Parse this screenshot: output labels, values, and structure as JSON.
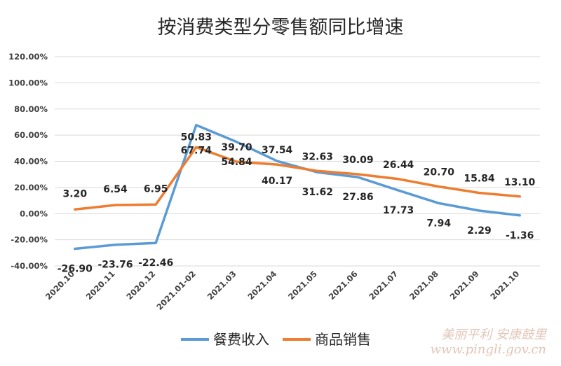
{
  "chart_data": {
    "type": "line",
    "title": "按消费类型分零售额同比增速",
    "categories": [
      "2020.10",
      "2020.11",
      "2020.12",
      "2021.01-02",
      "2021.03",
      "2021.04",
      "2021.05",
      "2021.06",
      "2021.07",
      "2021.08",
      "2021.09",
      "2021.10"
    ],
    "series": [
      {
        "name": "餐费收入",
        "color": "#5b9bd5",
        "values": [
          -26.9,
          -23.76,
          -22.46,
          67.74,
          54.84,
          40.17,
          31.62,
          27.86,
          17.73,
          7.94,
          2.29,
          -1.36
        ],
        "labels": [
          "-26.90",
          "-23.76",
          "-22.46",
          "67.74",
          "54.84",
          "40.17",
          "31.62",
          "27.86",
          "17.73",
          "7.94",
          "2.29",
          "-1.36"
        ]
      },
      {
        "name": "商品销售",
        "color": "#ed7d31",
        "values": [
          3.2,
          6.54,
          6.95,
          50.83,
          39.7,
          37.54,
          32.63,
          30.09,
          26.44,
          20.7,
          15.84,
          13.1
        ],
        "labels": [
          "3.20",
          "6.54",
          "6.95",
          "50.83",
          "39.70",
          "37.54",
          "32.63",
          "30.09",
          "26.44",
          "20.70",
          "15.84",
          "13.10"
        ]
      }
    ],
    "ylim": [
      -40,
      120
    ],
    "yticks": [
      "-40.00%",
      "-20.00%",
      "0.00%",
      "20.00%",
      "40.00%",
      "60.00%",
      "80.00%",
      "100.00%",
      "120.00%"
    ],
    "grid": true,
    "legend_position": "bottom"
  },
  "watermark": {
    "line1": "美丽平利 安康鼓里",
    "line2": "www.pingli.gov.cn"
  }
}
